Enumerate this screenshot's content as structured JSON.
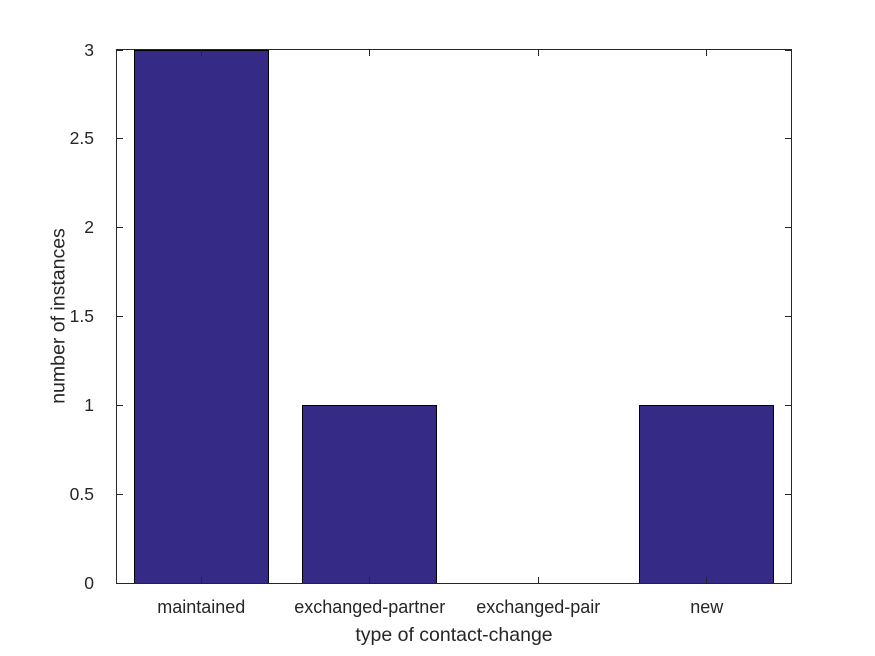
{
  "chart_data": {
    "type": "bar",
    "title": "",
    "categories": [
      "maintained",
      "exchanged-partner",
      "exchanged-pair",
      "new"
    ],
    "values": [
      3,
      1,
      0,
      1
    ],
    "xlabel": "type of contact-change",
    "ylabel": "number of instances",
    "ylim": [
      0,
      3
    ],
    "yticks": [
      0,
      0.5,
      1,
      1.5,
      2,
      2.5,
      3
    ],
    "ytick_labels": [
      "0",
      "0.5",
      "1",
      "1.5",
      "2",
      "2.5",
      "3"
    ],
    "grid": false,
    "legend": null,
    "bar_width_fraction": 0.8,
    "colors": {
      "bar_fill": "#362a87",
      "bar_edge": "#000000",
      "axis": "#262626",
      "text": "#262626",
      "background": "#ffffff"
    }
  }
}
